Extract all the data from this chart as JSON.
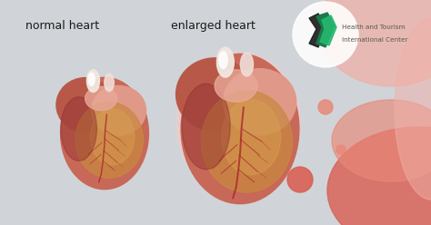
{
  "bg_color": "#d0d4d8",
  "label_normal": "normal heart",
  "label_enlarged": "enlarged heart",
  "logo_text_line1": "Health and Tourism",
  "logo_text_line2": "International Center",
  "label_color": "#1a1a1a",
  "logo_text_color": "#5a5a48",
  "blob_color_dark": "#d96055",
  "blob_color_mid": "#e88878",
  "blob_color_light": "#f0b0a8",
  "blob_color_very_light": "#f5ccc8",
  "logo_green_dark": "#1a7a4a",
  "logo_green_light": "#25b870",
  "logo_black": "#1a1a1a",
  "heart_color_base": "#c86050",
  "heart_color_mid": "#d4785a",
  "heart_color_light": "#e8a090",
  "heart_color_golden": "#c8883a",
  "heart_color_pink": "#e8b0a0",
  "vessel_color": "#aa2828"
}
